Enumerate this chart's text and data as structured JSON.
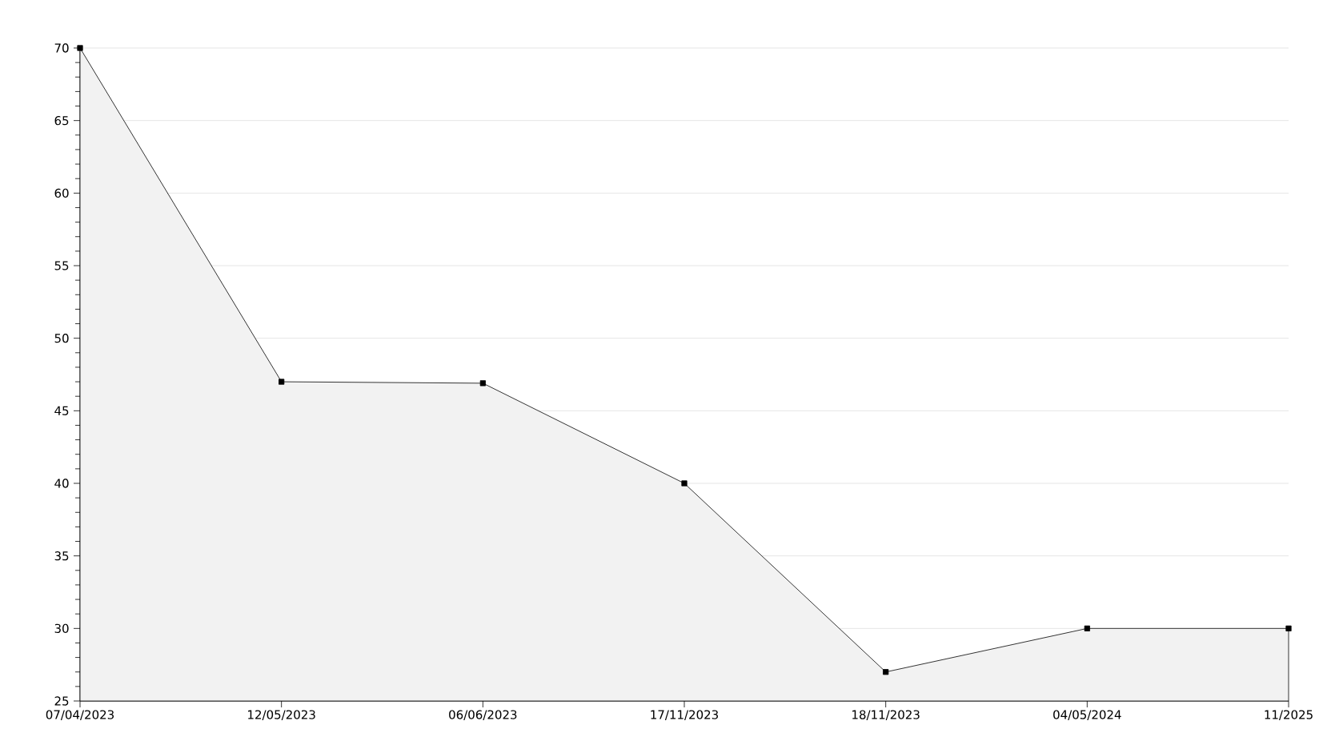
{
  "chart_data": {
    "type": "area",
    "categories": [
      "07/04/2023",
      "12/05/2023",
      "06/06/2023",
      "17/11/2023",
      "18/11/2023",
      "04/05/2024",
      "11/2025"
    ],
    "values": [
      70,
      47,
      46.9,
      40,
      27,
      30,
      30
    ],
    "color": "#000000",
    "ylim": [
      25,
      70
    ],
    "yticks": [
      25,
      30,
      35,
      40,
      45,
      50,
      55,
      60,
      65,
      70
    ],
    "grid": "y",
    "marker": "square",
    "line_style": "solid"
  }
}
